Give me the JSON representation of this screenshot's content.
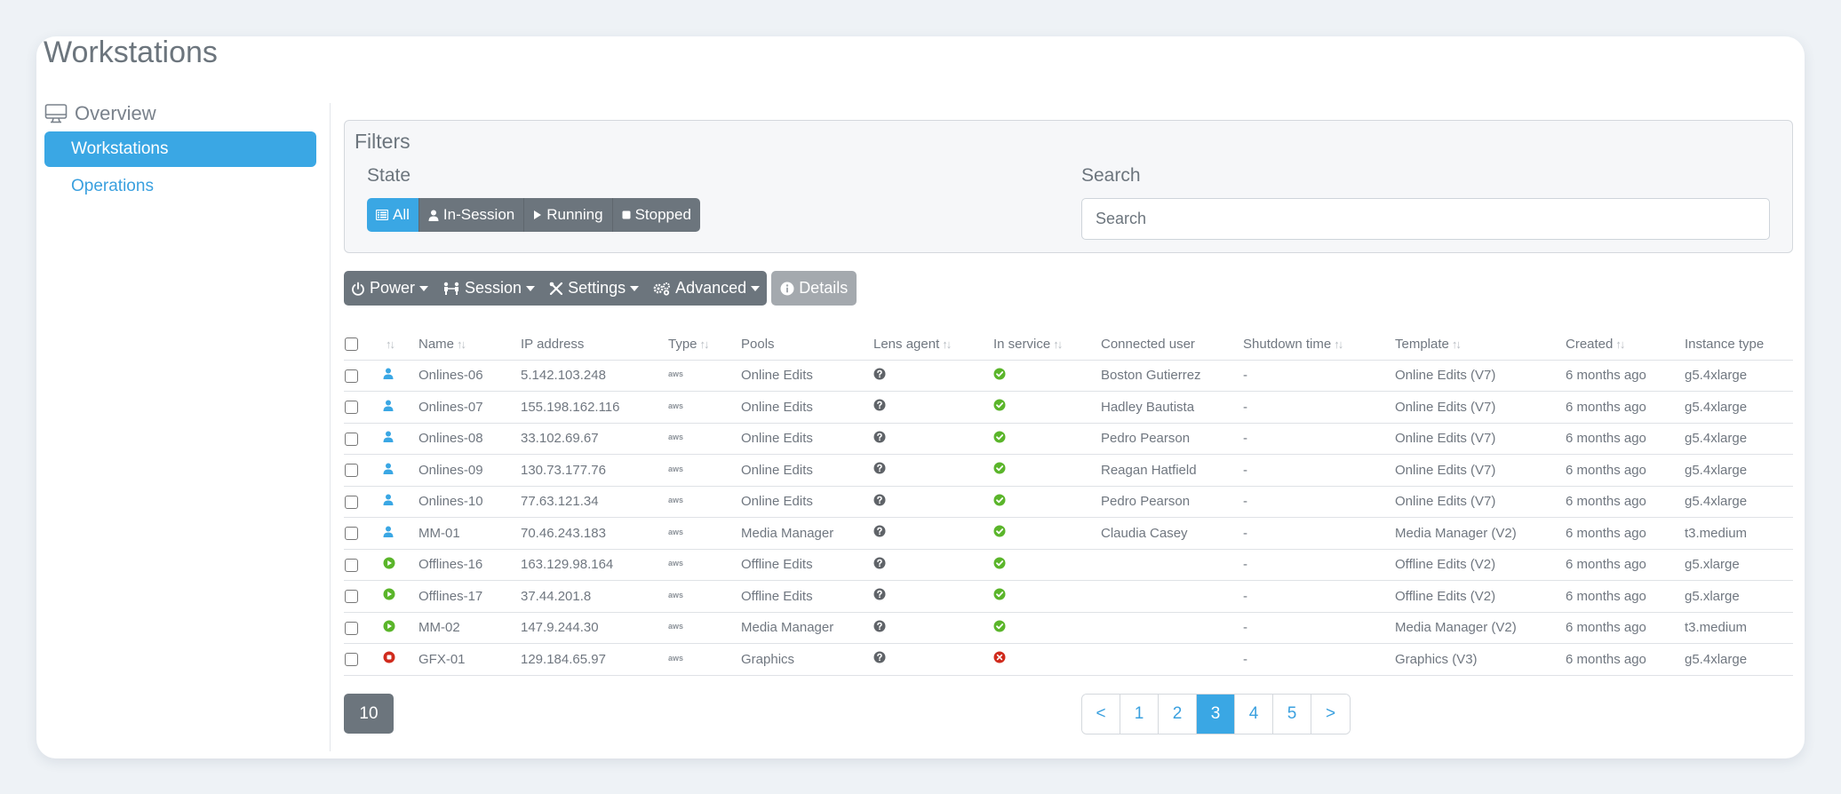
{
  "page_title": "Workstations",
  "sidebar": {
    "heading": "Overview",
    "items": [
      {
        "label": "Workstations",
        "active": true
      },
      {
        "label": "Operations",
        "active": false
      }
    ]
  },
  "filters": {
    "title": "Filters",
    "state_label": "State",
    "state_buttons": [
      {
        "label": "All",
        "icon": "list-icon",
        "active": true
      },
      {
        "label": "In-Session",
        "icon": "user-icon",
        "active": false
      },
      {
        "label": "Running",
        "icon": "play-icon",
        "active": false
      },
      {
        "label": "Stopped",
        "icon": "stop-icon",
        "active": false
      }
    ],
    "search_label": "Search",
    "search_placeholder": "Search",
    "search_value": ""
  },
  "toolbar": {
    "power": "Power",
    "session": "Session",
    "settings": "Settings",
    "advanced": "Advanced",
    "details": "Details"
  },
  "table": {
    "columns": [
      "Name",
      "IP address",
      "Type",
      "Pools",
      "Lens agent",
      "In service",
      "Connected user",
      "Shutdown time",
      "Template",
      "Created",
      "Instance type"
    ],
    "type_label": "aws",
    "rows": [
      {
        "status": "in-session",
        "name": "Onlines-06",
        "ip": "5.142.103.248",
        "pool": "Online Edits",
        "in_service": true,
        "user": "Boston Gutierrez",
        "shutdown": "-",
        "template": "Online Edits (V7)",
        "created": "6 months ago",
        "instance": "g5.4xlarge"
      },
      {
        "status": "in-session",
        "name": "Onlines-07",
        "ip": "155.198.162.116",
        "pool": "Online Edits",
        "in_service": true,
        "user": "Hadley Bautista",
        "shutdown": "-",
        "template": "Online Edits (V7)",
        "created": "6 months ago",
        "instance": "g5.4xlarge"
      },
      {
        "status": "in-session",
        "name": "Onlines-08",
        "ip": "33.102.69.67",
        "pool": "Online Edits",
        "in_service": true,
        "user": "Pedro Pearson",
        "shutdown": "-",
        "template": "Online Edits (V7)",
        "created": "6 months ago",
        "instance": "g5.4xlarge"
      },
      {
        "status": "in-session",
        "name": "Onlines-09",
        "ip": "130.73.177.76",
        "pool": "Online Edits",
        "in_service": true,
        "user": "Reagan Hatfield",
        "shutdown": "-",
        "template": "Online Edits (V7)",
        "created": "6 months ago",
        "instance": "g5.4xlarge"
      },
      {
        "status": "in-session",
        "name": "Onlines-10",
        "ip": "77.63.121.34",
        "pool": "Online Edits",
        "in_service": true,
        "user": "Pedro Pearson",
        "shutdown": "-",
        "template": "Online Edits (V7)",
        "created": "6 months ago",
        "instance": "g5.4xlarge"
      },
      {
        "status": "in-session",
        "name": "MM-01",
        "ip": "70.46.243.183",
        "pool": "Media Manager",
        "in_service": true,
        "user": "Claudia Casey",
        "shutdown": "-",
        "template": "Media Manager (V2)",
        "created": "6 months ago",
        "instance": "t3.medium"
      },
      {
        "status": "running",
        "name": "Offlines-16",
        "ip": "163.129.98.164",
        "pool": "Offline Edits",
        "in_service": true,
        "user": "",
        "shutdown": "-",
        "template": "Offline Edits (V2)",
        "created": "6 months ago",
        "instance": "g5.xlarge"
      },
      {
        "status": "running",
        "name": "Offlines-17",
        "ip": "37.44.201.8",
        "pool": "Offline Edits",
        "in_service": true,
        "user": "",
        "shutdown": "-",
        "template": "Offline Edits (V2)",
        "created": "6 months ago",
        "instance": "g5.xlarge"
      },
      {
        "status": "running",
        "name": "MM-02",
        "ip": "147.9.244.30",
        "pool": "Media Manager",
        "in_service": true,
        "user": "",
        "shutdown": "-",
        "template": "Media Manager (V2)",
        "created": "6 months ago",
        "instance": "t3.medium"
      },
      {
        "status": "stopped",
        "name": "GFX-01",
        "ip": "129.184.65.97",
        "pool": "Graphics",
        "in_service": false,
        "user": "",
        "shutdown": "-",
        "template": "Graphics (V3)",
        "created": "6 months ago",
        "instance": "g5.4xlarge"
      }
    ]
  },
  "page_size": "10",
  "pagination": {
    "prev": "<",
    "next": ">",
    "pages": [
      "1",
      "2",
      "3",
      "4",
      "5"
    ],
    "current": "3"
  },
  "colors": {
    "accent": "#3aa7e4",
    "secondary": "#6c757d",
    "ok": "#5ab52a",
    "error": "#d02a1c"
  }
}
